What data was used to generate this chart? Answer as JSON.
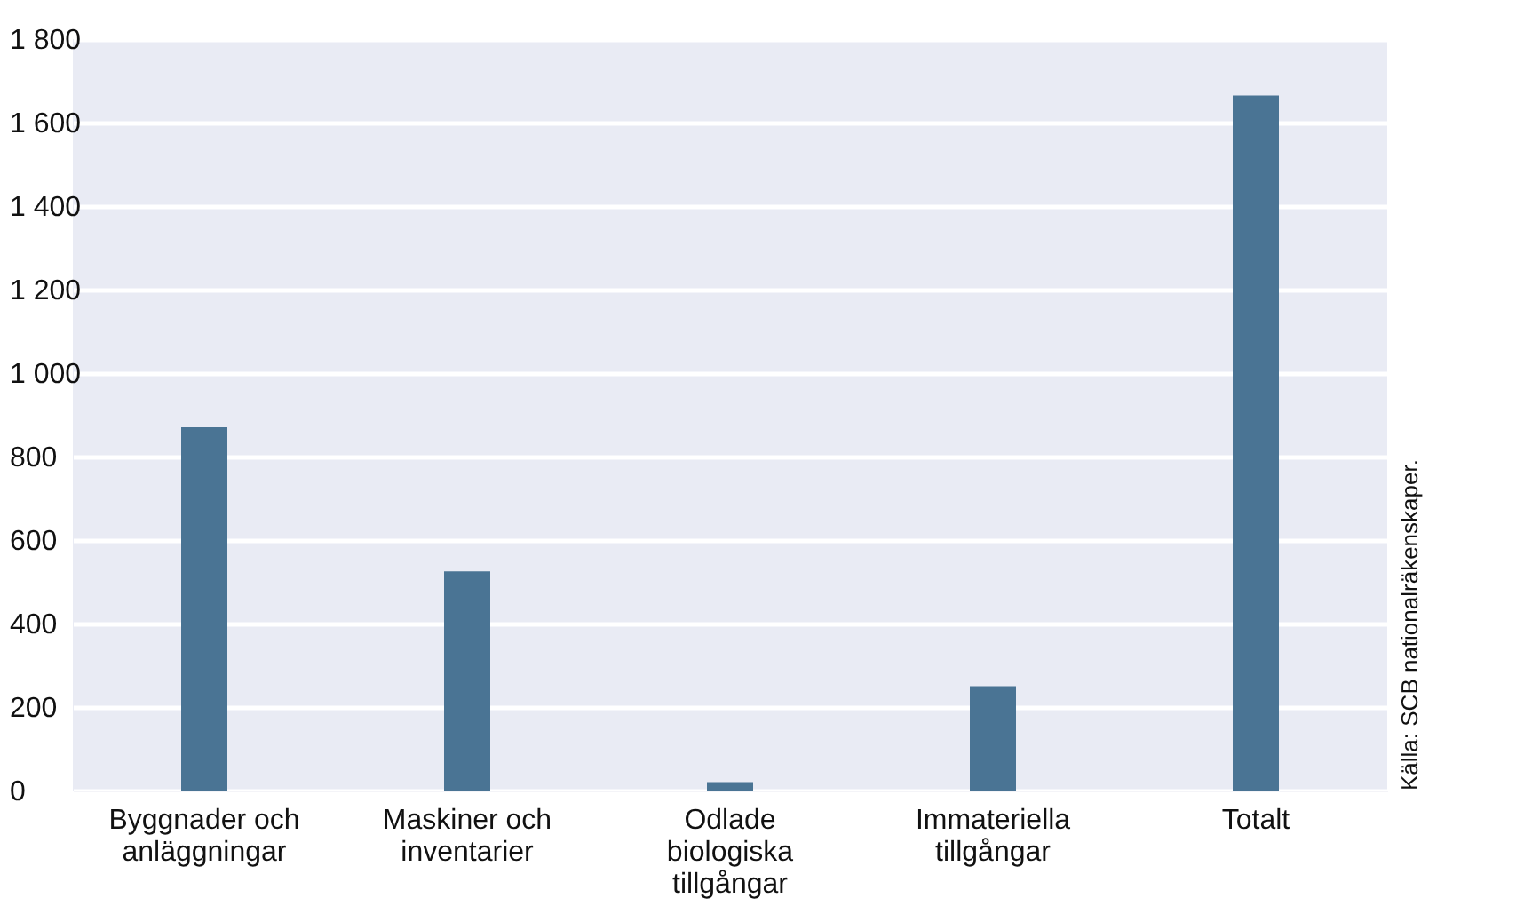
{
  "chart_data": {
    "type": "bar",
    "categories": [
      "Byggnader och anläggningar",
      "Maskiner och inventarier",
      "Odlade biologiska tillgångar",
      "Immateriella tillgångar",
      "Totalt"
    ],
    "values": [
      870,
      525,
      20,
      250,
      1665
    ],
    "color": "#4a7494",
    "ylim": [
      0,
      1800
    ],
    "yticks": [
      0,
      200,
      400,
      600,
      800,
      {
        "value": 1000,
        "label": "1 000"
      },
      {
        "value": 1200,
        "label": "1 200"
      },
      {
        "value": 1400,
        "label": "1 400"
      },
      {
        "value": 1600,
        "label": "1 600"
      },
      {
        "value": 1800,
        "label": "1 800"
      }
    ],
    "grid": "y",
    "annotations": [
      "Källa: SCB nationalräkenskaper."
    ]
  }
}
